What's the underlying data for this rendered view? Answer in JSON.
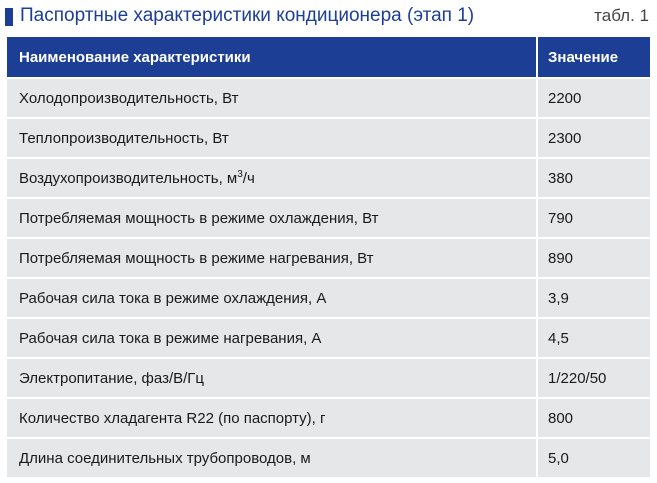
{
  "header": {
    "title": "Паспортные характеристики кондиционера (этап 1)",
    "table_number": "табл. 1"
  },
  "table": {
    "columns": [
      "Наименование характеристики",
      "Значение"
    ],
    "rows": [
      {
        "name": "Холодопроизводительность, Вт",
        "value": "2200"
      },
      {
        "name": "Теплопроизводительность, Вт",
        "value": "2300"
      },
      {
        "name_prefix": "Воздухопроизводительность, м",
        "name_sup": "3",
        "name_suffix": "/ч",
        "value": "380"
      },
      {
        "name": "Потребляемая мощность в режиме охлаждения, Вт",
        "value": "790"
      },
      {
        "name": "Потребляемая мощность в режиме нагревания, Вт",
        "value": "890"
      },
      {
        "name": "Рабочая сила тока в режиме охлаждения, А",
        "value": "3,9"
      },
      {
        "name": "Рабочая сила тока в режиме нагревания, А",
        "value": "4,5"
      },
      {
        "name": "Электропитание, фаз/В/Гц",
        "value": "1/220/50"
      },
      {
        "name": "Количество хладагента R22 (по паспорту), г",
        "value": "800"
      },
      {
        "name": "Длина соединительных трубопроводов, м",
        "value": "5,0"
      }
    ]
  },
  "colors": {
    "accent": "#1c3f95",
    "row_background": "#e6e7e9"
  }
}
